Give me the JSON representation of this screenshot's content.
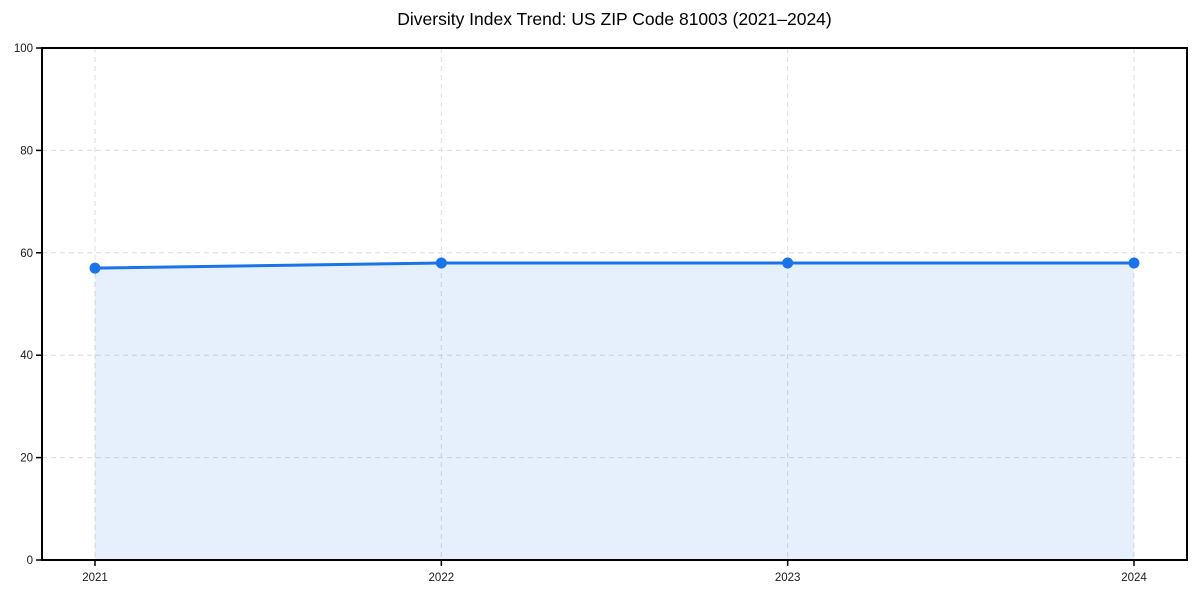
{
  "figure": {
    "background": "#ffffff"
  },
  "chart_data": {
    "type": "line",
    "title": "Diversity Index Trend: US ZIP Code 81003 (2021–2024)",
    "categories": [
      "2021",
      "2022",
      "2023",
      "2024"
    ],
    "series": [
      {
        "name": "Diversity Index",
        "values": [
          57,
          58,
          58,
          58
        ]
      }
    ],
    "xlabel": "",
    "ylabel": "",
    "ylim": [
      0,
      100
    ],
    "yticks": [
      0,
      20,
      40,
      60,
      80,
      100
    ],
    "grid": "dashed-both-axes",
    "legend_position": "none",
    "marker": "circle",
    "area_fill": true,
    "colors": {
      "line": "#1a73e8",
      "marker": "#1a73e8",
      "area": "#1a73e8",
      "area_opacity": 0.11,
      "grid": "#dcdcdc",
      "spine": "#000000",
      "tick_text": "#1a1a1a"
    }
  }
}
